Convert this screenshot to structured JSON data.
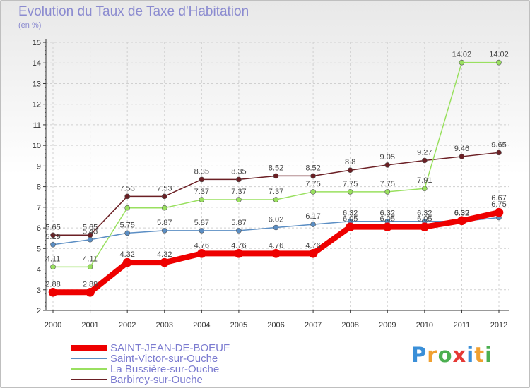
{
  "chart_data": {
    "type": "line",
    "title": "Evolution du Taux de Taxe d'Habitation",
    "subtitle": "(en %)",
    "xlabel": "",
    "ylabel": "",
    "ylim": [
      2,
      15
    ],
    "yticks": [
      "2",
      "3",
      "4",
      "5",
      "6",
      "7",
      "8",
      "9",
      "10",
      "11",
      "12",
      "13",
      "14",
      "15"
    ],
    "categories": [
      "2000",
      "2001",
      "2002",
      "2003",
      "2004",
      "2005",
      "2006",
      "2007",
      "2008",
      "2009",
      "2010",
      "2011",
      "2012"
    ],
    "series": [
      {
        "name": "Barbirey-sur-Ouche",
        "color": "#6b1f24",
        "width": 1.5,
        "values": [
          5.65,
          5.65,
          7.53,
          7.53,
          8.35,
          8.35,
          8.52,
          8.52,
          8.8,
          9.05,
          9.27,
          9.46,
          9.65
        ],
        "labels": [
          "5.65",
          "5.65",
          "7.53",
          "7.53",
          "8.35",
          "8.35",
          "8.52",
          "8.52",
          "8.8",
          "9.05",
          "9.27",
          "9.46",
          "9.65"
        ]
      },
      {
        "name": "La Bussière-sur-Ouche",
        "color": "#99e05f",
        "width": 1.5,
        "values": [
          4.11,
          4.11,
          6.97,
          6.97,
          7.37,
          7.37,
          7.37,
          7.75,
          7.75,
          7.75,
          7.91,
          14.02,
          14.02
        ],
        "labels": [
          "4.11",
          "4.11",
          "",
          "",
          "7.37",
          "7.37",
          "7.37",
          "7.75",
          "7.75",
          "7.75",
          "7.91",
          "14.02",
          "14.02"
        ]
      },
      {
        "name": "Saint-Victor-sur-Ouche",
        "color": "#5b8ec4",
        "width": 1.5,
        "values": [
          5.19,
          5.43,
          5.75,
          5.87,
          5.87,
          5.87,
          6.02,
          6.17,
          6.32,
          6.32,
          6.32,
          6.32,
          6.5
        ],
        "labels": [
          "5.19",
          "5.43",
          "5.75",
          "5.87",
          "5.87",
          "5.87",
          "6.02",
          "6.17",
          "6.32",
          "6.32",
          "6.32",
          "6.32",
          ""
        ]
      },
      {
        "name": "SAINT-JEAN-DE-BOEUF",
        "color": "#ee0000",
        "width": 8,
        "values": [
          2.88,
          2.88,
          4.32,
          4.32,
          4.76,
          4.76,
          4.76,
          4.76,
          6.05,
          6.05,
          6.05,
          6.35,
          6.75
        ],
        "labels": [
          "2.88",
          "2.88",
          "4.32",
          "4.32",
          "4.76",
          "4.76",
          "4.76",
          "4.76",
          "6.05",
          "6.05",
          "6.05",
          "6.35",
          "6.75"
        ]
      }
    ],
    "top_labels": [
      "",
      "",
      "",
      "",
      "",
      "",
      "",
      "",
      "",
      "",
      "",
      "",
      "6.67"
    ]
  },
  "legend": [
    {
      "name": "SAINT-JEAN-DE-BOEUF",
      "color": "#ee0000"
    },
    {
      "name": "Saint-Victor-sur-Ouche",
      "color": "#5b8ec4"
    },
    {
      "name": "La Bussière-sur-Ouche",
      "color": "#99e05f"
    },
    {
      "name": "Barbirey-sur-Ouche",
      "color": "#6b1f24"
    }
  ],
  "logo": {
    "letters": [
      "P",
      "r",
      "o",
      "x",
      "i",
      "t",
      "i"
    ],
    "colors": [
      "#3a8fd8",
      "#f0a030",
      "#4caf50",
      "#e53935",
      "#3a8fd8",
      "#f0a030",
      "#4caf50"
    ]
  }
}
